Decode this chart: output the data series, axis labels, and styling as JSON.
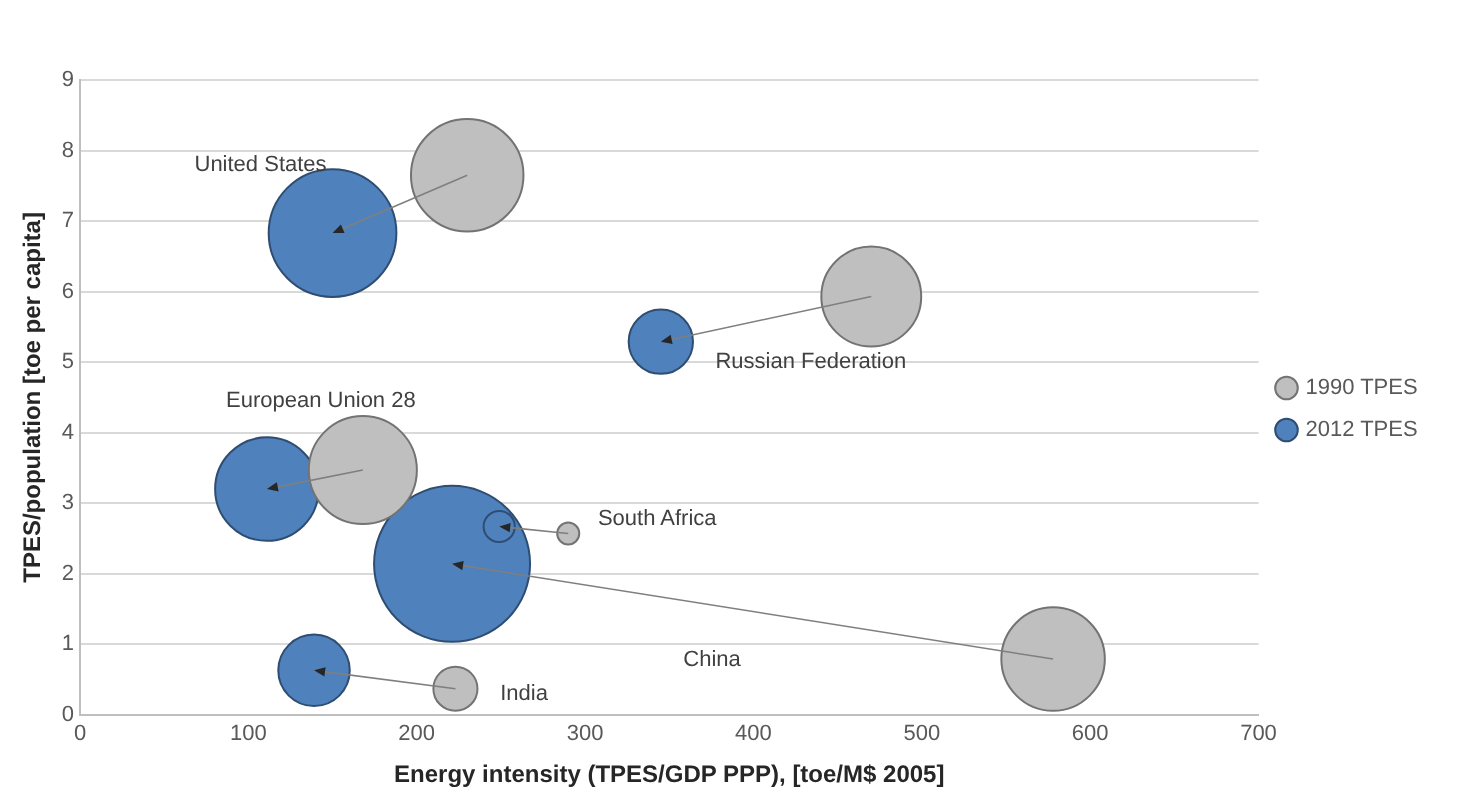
{
  "chart_data": {
    "type": "bubble",
    "xlabel": "Energy intensity (TPES/GDP PPP), [toe/M$ 2005]",
    "ylabel": "TPES/population [toe per capita]",
    "xlim": [
      0,
      700
    ],
    "xticks": [
      0,
      100,
      200,
      300,
      400,
      500,
      600,
      700
    ],
    "ylim": [
      0,
      9
    ],
    "yticks": [
      0,
      1,
      2,
      3,
      4,
      5,
      6,
      7,
      8,
      9
    ],
    "grid": "y",
    "legend": "right",
    "series": [
      {
        "name": "1990 TPES",
        "color": "#bfbfbf",
        "x": [
          230,
          470,
          168,
          578,
          290,
          223
        ],
        "values": [
          7.65,
          5.93,
          3.47,
          0.79,
          2.57,
          0.37
        ],
        "sizes": [
          0.52,
          0.41,
          0.48,
          0.44,
          0.02,
          0.08
        ]
      },
      {
        "name": "2012 TPES",
        "color": "#4f81bd",
        "x": [
          150,
          345,
          111,
          221,
          249,
          139
        ],
        "values": [
          6.83,
          5.29,
          3.2,
          2.14,
          2.67,
          0.63
        ],
        "sizes": [
          0.67,
          0.17,
          0.44,
          1,
          0.04,
          0.21
        ]
      }
    ],
    "annotations": [
      "United States",
      "Russian Federation",
      "European Union 28",
      "China",
      "South Africa",
      "India"
    ]
  }
}
